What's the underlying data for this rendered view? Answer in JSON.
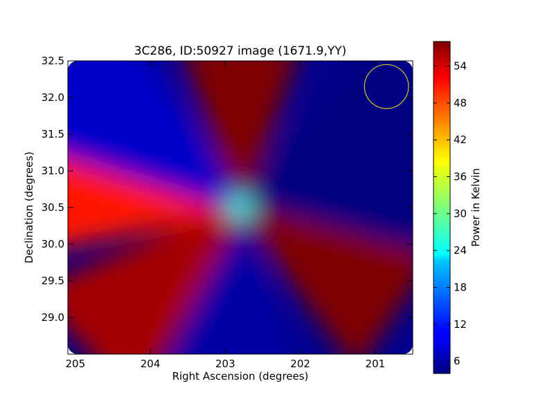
{
  "chart_data": {
    "type": "heatmap",
    "title": "3C286, ID:50927 image (1671.9,YY)",
    "xlabel": "Right Ascension (degrees)",
    "ylabel": "Declination (degrees)",
    "xlim": [
      205.1,
      200.5
    ],
    "ylim": [
      28.5,
      32.5
    ],
    "x_ticks": [
      205,
      204,
      203,
      202,
      201
    ],
    "x_tick_labels": [
      "205",
      "204",
      "203",
      "202",
      "201"
    ],
    "y_ticks": [
      29.0,
      29.5,
      30.0,
      30.5,
      31.0,
      31.5,
      32.0,
      32.5
    ],
    "y_tick_labels": [
      "29.0",
      "29.5",
      "30.0",
      "30.5",
      "31.0",
      "31.5",
      "32.0",
      "32.5"
    ],
    "colormap": "jet",
    "colorbar": {
      "label": "Power in Kelvin",
      "range": [
        4,
        58
      ],
      "ticks": [
        6,
        12,
        18,
        24,
        30,
        36,
        42,
        48,
        54
      ],
      "tick_labels": [
        "6",
        "12",
        "18",
        "24",
        "30",
        "36",
        "42",
        "48",
        "54"
      ]
    },
    "center": {
      "ra": 202.8,
      "dec": 30.5,
      "value": 25
    },
    "spokes": [
      {
        "direction": "north",
        "ra": 202.8,
        "dec": 31.9,
        "value": 58
      },
      {
        "direction": "south",
        "ra": 202.9,
        "dec": 29.0,
        "value": 6
      },
      {
        "direction": "west",
        "ra": 204.8,
        "dec": 30.8,
        "value": 50
      },
      {
        "direction": "east",
        "ra": 201.0,
        "dec": 30.6,
        "value": 4
      },
      {
        "direction": "north-west",
        "ra": 204.5,
        "dec": 31.8,
        "value": 8
      },
      {
        "direction": "north-east",
        "ra": 201.3,
        "dec": 31.5,
        "value": 4
      },
      {
        "direction": "south-west",
        "ra": 204.1,
        "dec": 29.3,
        "value": 56
      },
      {
        "direction": "south-east",
        "ra": 201.5,
        "dec": 29.6,
        "value": 58
      }
    ],
    "marker": {
      "shape": "circle",
      "ra": 200.85,
      "dec": 32.15,
      "radius_deg": 0.3,
      "color": "#d4c820"
    },
    "grid": false,
    "legend": "none"
  }
}
